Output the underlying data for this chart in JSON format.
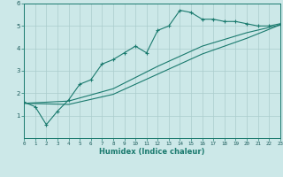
{
  "xlabel": "Humidex (Indice chaleur)",
  "bg_color": "#cce8e8",
  "grid_color": "#aacccc",
  "line_color": "#1a7a6e",
  "xlim": [
    0,
    23
  ],
  "ylim": [
    0,
    6
  ],
  "xticks": [
    0,
    1,
    2,
    3,
    4,
    5,
    6,
    7,
    8,
    9,
    10,
    11,
    12,
    13,
    14,
    15,
    16,
    17,
    18,
    19,
    20,
    21,
    22,
    23
  ],
  "yticks": [
    1,
    2,
    3,
    4,
    5,
    6
  ],
  "line1_x": [
    0,
    1,
    2,
    3,
    4,
    5,
    6,
    7,
    8,
    9,
    10,
    11,
    12,
    13,
    14,
    15,
    16,
    17,
    18,
    19,
    20,
    21,
    22,
    23
  ],
  "line1_y": [
    1.6,
    1.4,
    0.6,
    1.2,
    1.7,
    2.4,
    2.6,
    3.3,
    3.5,
    3.8,
    4.1,
    3.8,
    4.8,
    5.0,
    5.7,
    5.6,
    5.3,
    5.3,
    5.2,
    5.2,
    5.1,
    5.0,
    5.0,
    5.1
  ],
  "line2_x": [
    0,
    23
  ],
  "line2_y": [
    1.55,
    5.05
  ],
  "line3_x": [
    0,
    23
  ],
  "line3_y": [
    1.55,
    5.05
  ],
  "line2_ctrl_x": [
    0,
    4,
    8,
    12,
    16,
    20,
    23
  ],
  "line2_ctrl_y": [
    1.55,
    1.65,
    2.2,
    3.2,
    4.1,
    4.7,
    5.05
  ],
  "line3_ctrl_x": [
    0,
    4,
    8,
    12,
    16,
    20,
    23
  ],
  "line3_ctrl_y": [
    1.55,
    1.5,
    1.95,
    2.85,
    3.75,
    4.45,
    5.05
  ]
}
